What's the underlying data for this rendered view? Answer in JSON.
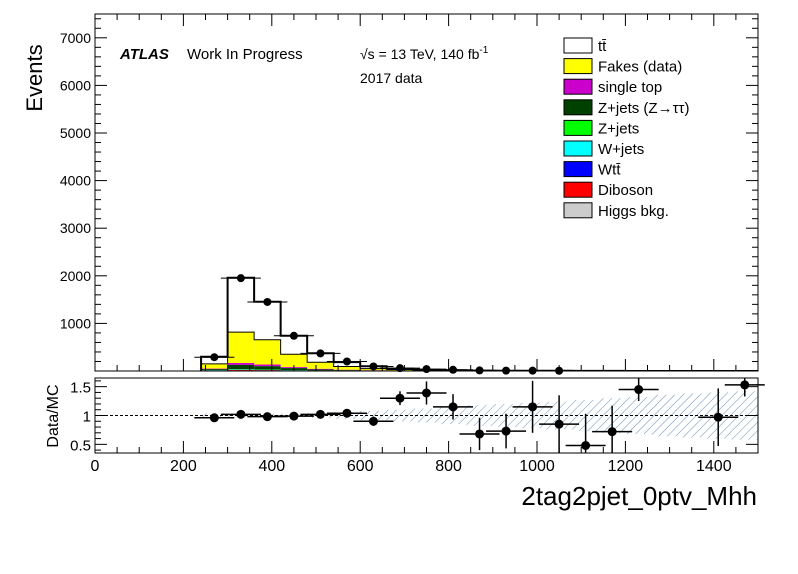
{
  "chart_data": [
    {
      "type": "bar",
      "panel": "main",
      "ylabel": "Events",
      "xlim": [
        0,
        1500
      ],
      "ylim": [
        0,
        7500
      ],
      "yticks": [
        1000,
        2000,
        3000,
        4000,
        5000,
        6000,
        7000
      ],
      "atlas_label": "ATLAS",
      "atlas_status": "Work In Progress",
      "energy_text": "√s = 13 TeV, 140 fb",
      "energy_sup": "-1",
      "dataset_text": "2017 data",
      "bin_edges": [
        240,
        300,
        360,
        420,
        480,
        540,
        600,
        660,
        720,
        780,
        840,
        900,
        960,
        1020,
        1080,
        1140,
        1200,
        1260,
        1320,
        1380,
        1440,
        1500
      ],
      "stack": [
        {
          "name": "Higgs bkg.",
          "color": "#cccccc",
          "values": [
            5,
            10,
            8,
            5,
            3,
            2,
            1,
            1,
            0,
            0,
            0,
            0,
            0,
            0,
            0,
            0,
            0,
            0,
            0,
            0,
            0
          ]
        },
        {
          "name": "Diboson",
          "color": "#ff0000",
          "values": [
            5,
            10,
            8,
            5,
            3,
            2,
            1,
            1,
            0,
            0,
            0,
            0,
            0,
            0,
            0,
            0,
            0,
            0,
            0,
            0,
            0
          ]
        },
        {
          "name": "Wtt̄",
          "color": "#0000ff",
          "values": [
            3,
            5,
            4,
            3,
            2,
            1,
            1,
            0,
            0,
            0,
            0,
            0,
            0,
            0,
            0,
            0,
            0,
            0,
            0,
            0,
            0
          ]
        },
        {
          "name": "W+jets",
          "color": "#00ffff",
          "values": [
            2,
            3,
            3,
            2,
            1,
            1,
            0,
            0,
            0,
            0,
            0,
            0,
            0,
            0,
            0,
            0,
            0,
            0,
            0,
            0,
            0
          ]
        },
        {
          "name": "Z+jets",
          "color": "#00ff00",
          "values": [
            5,
            10,
            8,
            6,
            3,
            2,
            1,
            1,
            0,
            0,
            0,
            0,
            0,
            0,
            0,
            0,
            0,
            0,
            0,
            0,
            0
          ]
        },
        {
          "name": "Z+jets (Z→ττ)",
          "color": "#004000",
          "values": [
            20,
            90,
            70,
            40,
            20,
            10,
            6,
            3,
            2,
            1,
            1,
            0,
            0,
            0,
            0,
            0,
            0,
            0,
            0,
            0,
            0
          ]
        },
        {
          "name": "single top",
          "color": "#cc00cc",
          "values": [
            10,
            40,
            35,
            20,
            12,
            7,
            4,
            2,
            1,
            1,
            0,
            0,
            0,
            0,
            0,
            0,
            0,
            0,
            0,
            0,
            0
          ]
        },
        {
          "name": "Fakes (data)",
          "color": "#ffff00",
          "values": [
            100,
            650,
            520,
            270,
            140,
            70,
            35,
            20,
            10,
            6,
            4,
            2,
            2,
            1,
            1,
            1,
            0,
            0,
            0,
            0,
            0
          ]
        },
        {
          "name": "tt̄",
          "color": "#ffffff",
          "values": [
            150,
            1140,
            800,
            390,
            190,
            92,
            51,
            22,
            12,
            7,
            4,
            4,
            3,
            3,
            2,
            1,
            1,
            1,
            1,
            1,
            1
          ]
        }
      ],
      "data_points": {
        "name": "Data",
        "x": [
          270,
          330,
          390,
          450,
          510,
          570,
          630,
          690,
          750,
          810,
          870,
          930,
          990,
          1050,
          1110,
          1170,
          1230,
          1290,
          1350,
          1410,
          1470
        ],
        "y": [
          290,
          1950,
          1450,
          740,
          370,
          200,
          95,
          60,
          40,
          25,
          12,
          8,
          7,
          5,
          3,
          2,
          2,
          1,
          1,
          1,
          1
        ]
      },
      "legend_position": "top-right"
    },
    {
      "type": "scatter",
      "panel": "ratio",
      "ylabel": "Data/MC",
      "xlabel": "2tag2pjet_0ptv_Mhh",
      "xlim": [
        0,
        1500
      ],
      "ylim": [
        0.35,
        1.65
      ],
      "yticks": [
        0.5,
        1,
        1.5
      ],
      "xticks": [
        0,
        200,
        400,
        600,
        800,
        1000,
        1200,
        1400
      ],
      "reference_line": 1,
      "x": [
        270,
        330,
        390,
        450,
        510,
        570,
        630,
        690,
        750,
        810,
        870,
        930,
        990,
        1050,
        1110,
        1170,
        1230,
        1410,
        1470
      ],
      "y": [
        0.96,
        1.02,
        0.98,
        0.99,
        1.02,
        1.04,
        0.9,
        1.3,
        1.39,
        1.15,
        0.68,
        0.73,
        1.15,
        0.85,
        0.48,
        0.72,
        1.45,
        0.97,
        1.53
      ],
      "yerr": [
        0.04,
        0.03,
        0.03,
        0.03,
        0.04,
        0.06,
        0.08,
        0.12,
        0.2,
        0.22,
        0.28,
        0.3,
        0.45,
        0.5,
        0.55,
        0.45,
        0.2,
        0.5,
        0.2
      ],
      "band_halfwidth": [
        0.04,
        0.03,
        0.03,
        0.03,
        0.04,
        0.06,
        0.08,
        0.1,
        0.12,
        0.15,
        0.18,
        0.2,
        0.22,
        0.24,
        0.27,
        0.3,
        0.32,
        0.36,
        0.38,
        0.4,
        0.42
      ]
    }
  ]
}
